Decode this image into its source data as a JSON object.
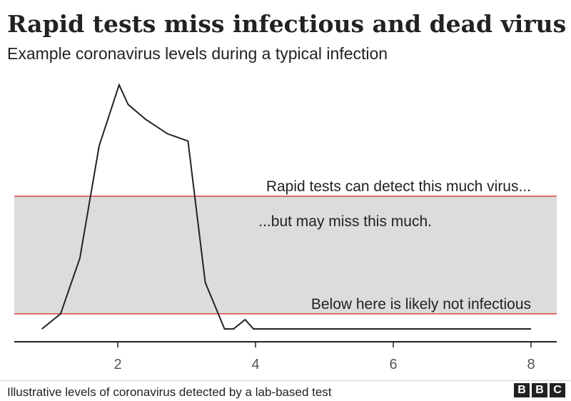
{
  "title": "Rapid tests miss infectious and dead virus",
  "subtitle": "Example coronavirus levels during a typical infection",
  "source": "Illustrative levels of coronavirus detected by a lab-based test",
  "logo": [
    "B",
    "B",
    "C"
  ],
  "colors": {
    "line": "#222222",
    "band_fill": "#dcdcdc",
    "threshold": "#e0413c",
    "axis": "#222222"
  },
  "chart_data": {
    "type": "line",
    "x_ticks": [
      2,
      4,
      6,
      8
    ],
    "xlim": [
      0.5,
      8.4
    ],
    "ylim": [
      0,
      10
    ],
    "series": [
      {
        "x": [
          0.9,
          1.17,
          1.45,
          1.73,
          2.02,
          2.15,
          2.4,
          2.72,
          3.02,
          3.27,
          3.55,
          3.68,
          3.85,
          3.97,
          8.0
        ],
        "y": [
          0.0,
          0.62,
          2.9,
          7.5,
          10.0,
          9.2,
          8.6,
          8.0,
          7.7,
          1.9,
          0.0,
          0.0,
          0.38,
          0.0,
          0.0
        ]
      }
    ],
    "band": {
      "y_low": 0.62,
      "y_high": 5.44
    },
    "annotations": [
      {
        "text": "Rapid tests can detect this much virus...",
        "x": 8.0,
        "y": 5.44,
        "anchor": "end"
      },
      {
        "text": "...but may miss this much.",
        "x": 6.6,
        "y": 4.4,
        "anchor": "end"
      },
      {
        "text": "Below here is likely not infectious",
        "x": 8.0,
        "y": 0.62,
        "anchor": "end"
      }
    ]
  }
}
